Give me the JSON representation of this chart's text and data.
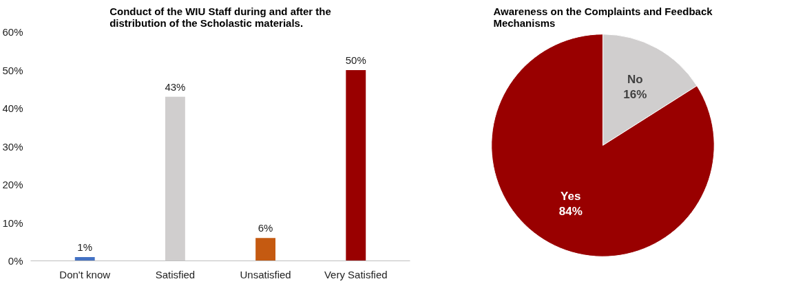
{
  "chart_data": [
    {
      "type": "bar",
      "title": "Conduct of the WIU Staff during and after the distribution of the Scholastic materials.",
      "categories": [
        "Don't know",
        "Satisfied",
        "Unsatisfied",
        "Very Satisfied"
      ],
      "values": [
        1,
        43,
        6,
        50
      ],
      "colors": [
        "#4472c4",
        "#d0cece",
        "#c55a11",
        "#990000"
      ],
      "value_labels": [
        "1%",
        "43%",
        "6%",
        "50%"
      ],
      "ylim": [
        0,
        60
      ],
      "yticks": [
        {
          "value": 0,
          "label": "0%"
        },
        {
          "value": 10,
          "label": "10%"
        },
        {
          "value": 20,
          "label": "20%"
        },
        {
          "value": 30,
          "label": "30%"
        },
        {
          "value": 40,
          "label": "40%"
        },
        {
          "value": 50,
          "label": "50%"
        },
        {
          "value": 60,
          "label": "60%"
        }
      ],
      "grid": false
    },
    {
      "type": "pie",
      "title": "Awareness on the Complaints and Feedback Mechanisms",
      "categories": [
        "No",
        "Yes"
      ],
      "values": [
        16,
        84
      ],
      "colors": [
        "#d0cece",
        "#990000"
      ],
      "value_labels": [
        "16%",
        "84%"
      ]
    }
  ]
}
